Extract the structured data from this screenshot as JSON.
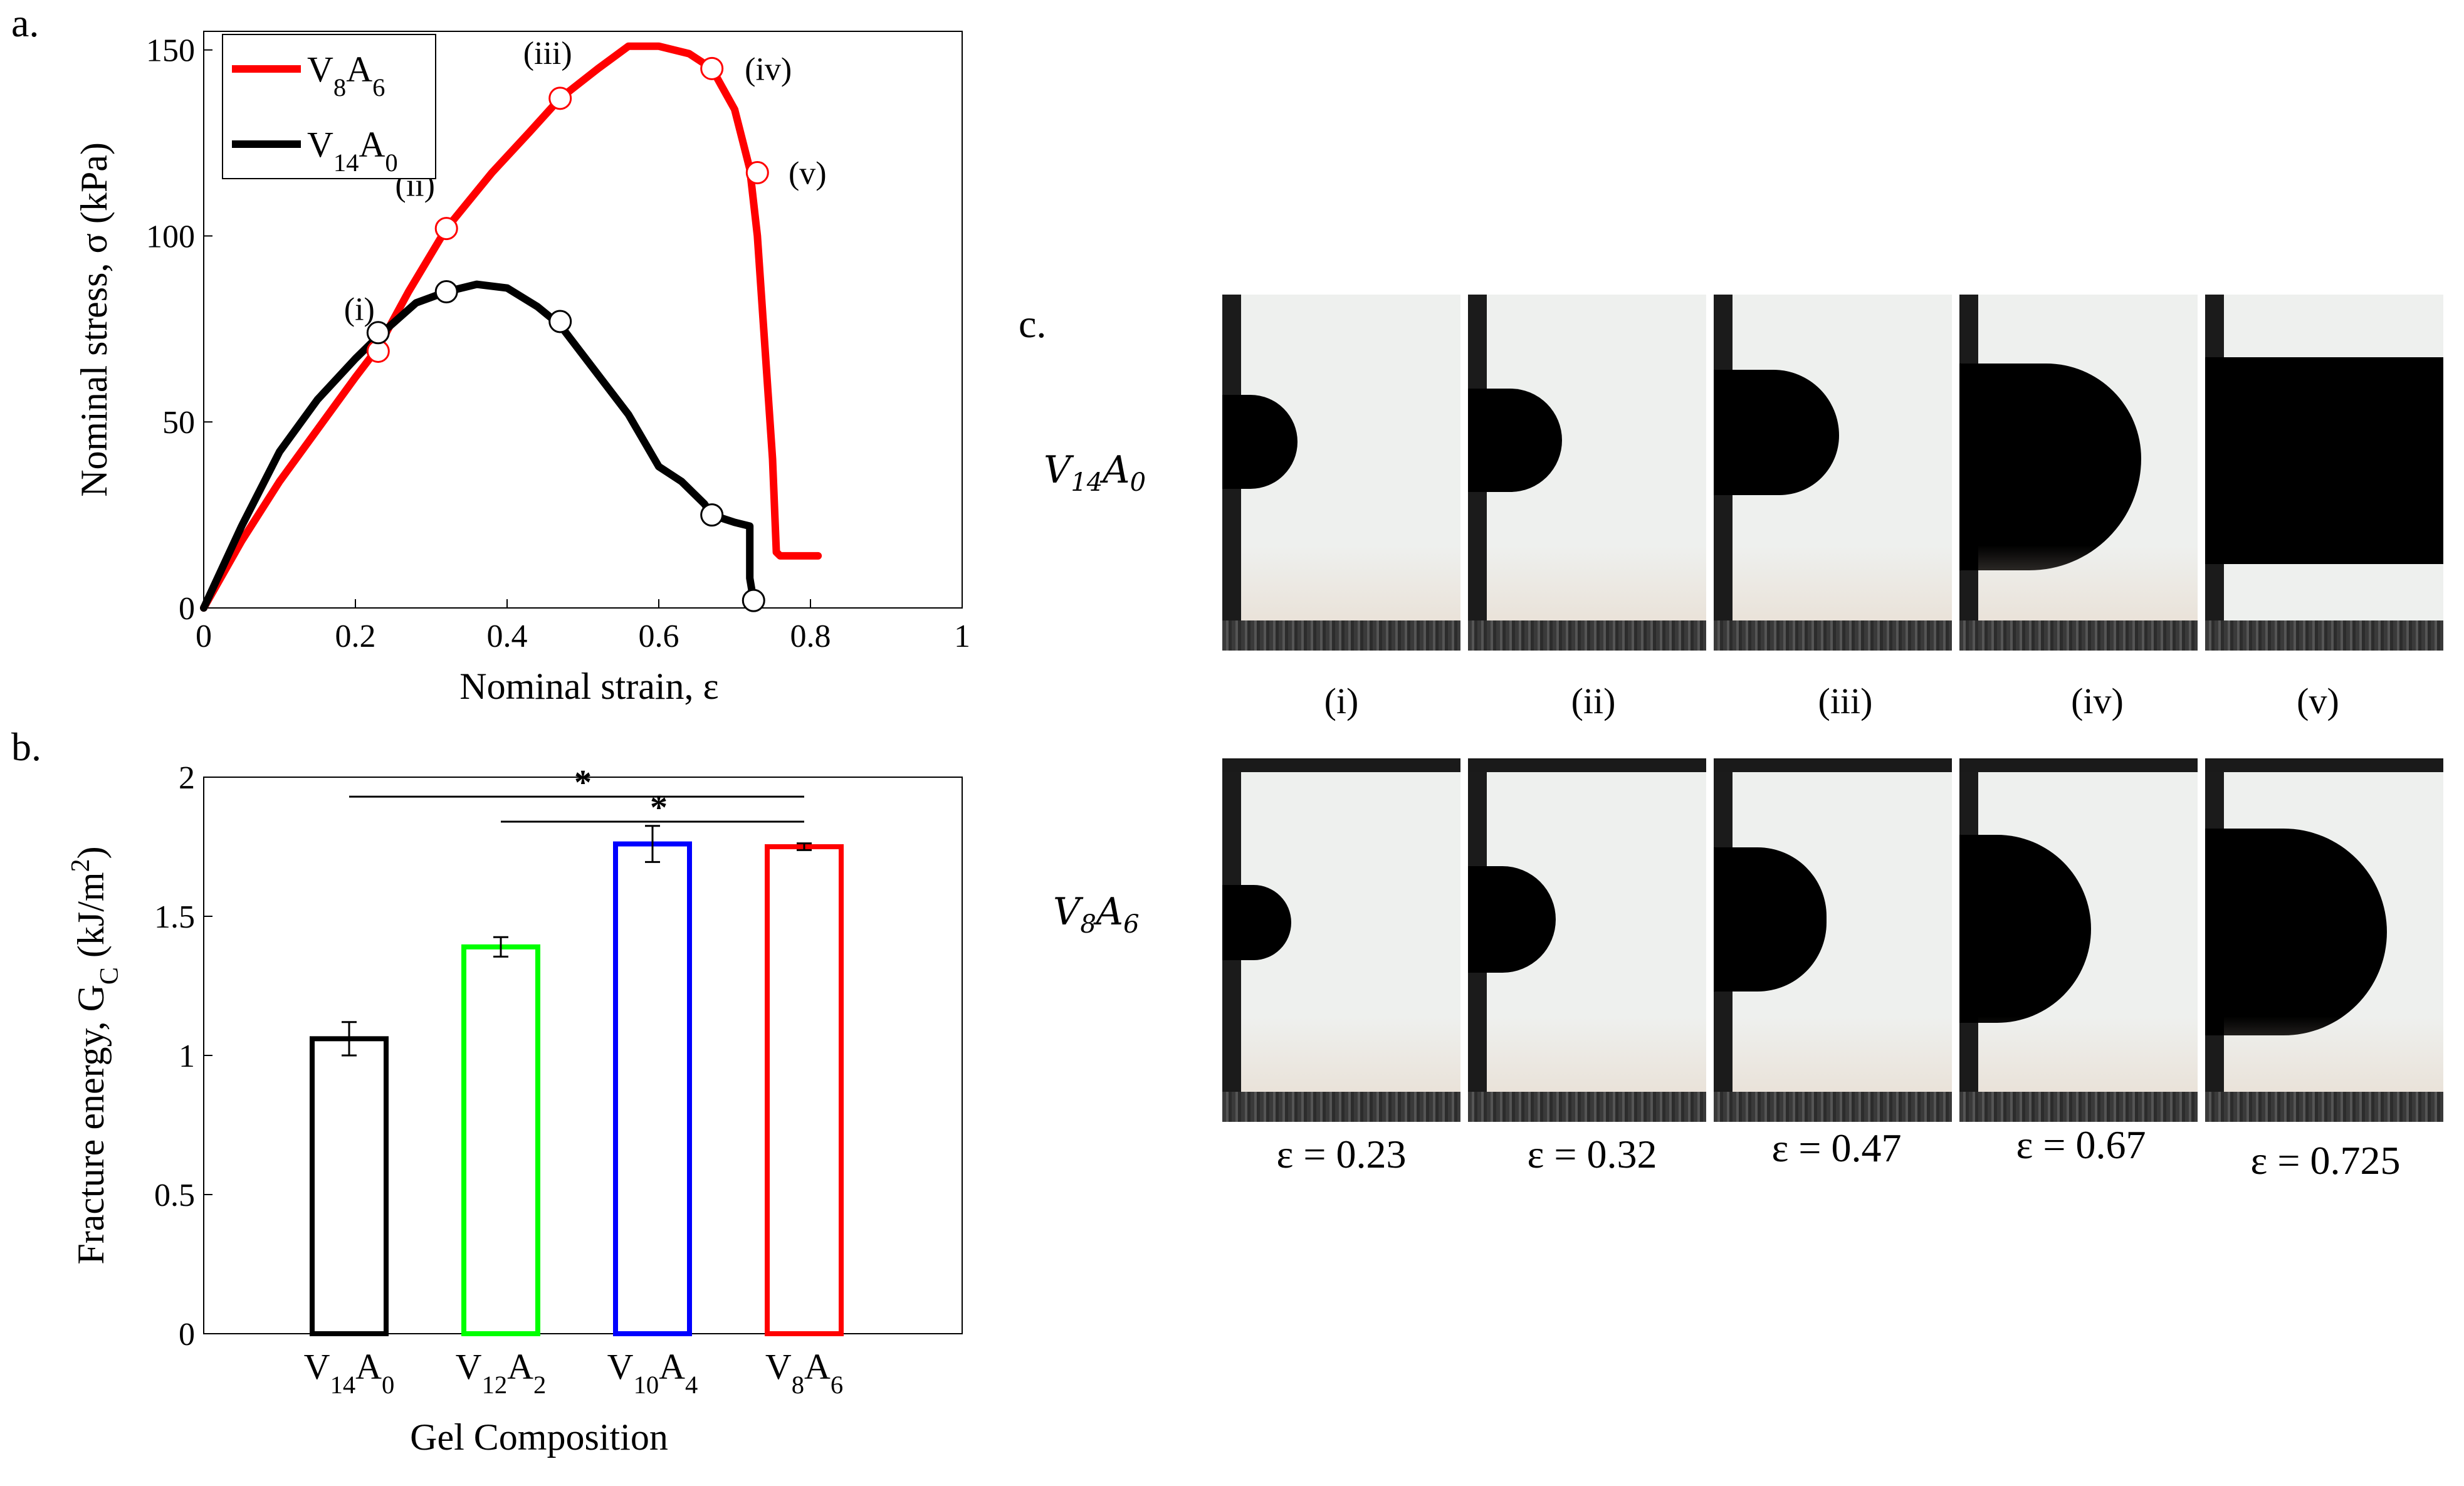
{
  "panels": {
    "a": "a.",
    "b": "b.",
    "c": "c."
  },
  "chart_data": [
    {
      "type": "line",
      "xlabel": "Nominal strain, ε",
      "ylabel": "Nominal stress, σ (kPa)",
      "xlim": [
        0,
        1
      ],
      "ylim": [
        0,
        155
      ],
      "xticks": [
        0,
        0.2,
        0.4,
        0.6,
        0.8,
        1
      ],
      "xtick_labels": [
        "0",
        "0.2",
        "0.4",
        "0.6",
        "0.8",
        "1"
      ],
      "yticks": [
        0,
        50,
        100,
        150
      ],
      "ytick_labels": [
        "0",
        "50",
        "100",
        "150"
      ],
      "legend_position": "top-left",
      "series": [
        {
          "name": "V8A6",
          "color": "#ff0000",
          "x": [
            0,
            0.05,
            0.1,
            0.15,
            0.2,
            0.23,
            0.27,
            0.32,
            0.38,
            0.43,
            0.47,
            0.52,
            0.56,
            0.6,
            0.64,
            0.67,
            0.7,
            0.72,
            0.73,
            0.74,
            0.75,
            0.755,
            0.76,
            0.8,
            0.81
          ],
          "y": [
            0,
            18,
            34,
            48,
            62,
            70,
            85,
            102,
            117,
            128,
            137,
            145,
            151,
            151,
            149,
            145,
            134,
            118,
            100,
            70,
            40,
            15,
            14,
            14,
            14
          ]
        },
        {
          "name": "V14A0",
          "color": "#000000",
          "x": [
            0,
            0.05,
            0.1,
            0.15,
            0.2,
            0.23,
            0.28,
            0.32,
            0.36,
            0.4,
            0.44,
            0.47,
            0.5,
            0.53,
            0.56,
            0.58,
            0.6,
            0.63,
            0.66,
            0.67,
            0.7,
            0.72,
            0.72,
            0.725
          ],
          "y": [
            0,
            22,
            42,
            56,
            67,
            73,
            82,
            85,
            87,
            86,
            81,
            76,
            68,
            60,
            52,
            45,
            38,
            34,
            28,
            25,
            23,
            22,
            8,
            2
          ]
        }
      ],
      "markers": [
        {
          "series": "V8A6",
          "x": 0.23,
          "y": 69,
          "label": "(i)"
        },
        {
          "series": "V8A6",
          "x": 0.32,
          "y": 102,
          "label": "(ii)"
        },
        {
          "series": "V8A6",
          "x": 0.47,
          "y": 137,
          "label": "(iii)"
        },
        {
          "series": "V8A6",
          "x": 0.67,
          "y": 145,
          "label": "(iv)"
        },
        {
          "series": "V8A6",
          "x": 0.73,
          "y": 117,
          "label": "(v)"
        },
        {
          "series": "V14A0",
          "x": 0.23,
          "y": 74,
          "label": ""
        },
        {
          "series": "V14A0",
          "x": 0.32,
          "y": 85,
          "label": ""
        },
        {
          "series": "V14A0",
          "x": 0.47,
          "y": 77,
          "label": ""
        },
        {
          "series": "V14A0",
          "x": 0.67,
          "y": 25,
          "label": ""
        },
        {
          "series": "V14A0",
          "x": 0.725,
          "y": 2,
          "label": ""
        }
      ]
    },
    {
      "type": "bar",
      "xlabel": "Gel Composition",
      "ylabel": "Fracture energy, GC (kJ/m2)",
      "ylim": [
        0,
        2
      ],
      "yticks": [
        0,
        0.5,
        1,
        1.5,
        2
      ],
      "ytick_labels": [
        "0",
        "0.5",
        "1",
        "1.5",
        "2"
      ],
      "categories": [
        "V14A0",
        "V12A2",
        "V10A4",
        "V8A6"
      ],
      "values": [
        1.06,
        1.39,
        1.76,
        1.75
      ],
      "errors": [
        0.06,
        0.035,
        0.065,
        0.012
      ],
      "colors": [
        "#000000",
        "#00ff00",
        "#0000ff",
        "#ff0000"
      ],
      "significance": [
        {
          "from": 0,
          "to": 3,
          "level": 1.93,
          "label": "*"
        },
        {
          "from": 1,
          "to": 3,
          "level": 1.84,
          "label": "*"
        }
      ]
    }
  ],
  "photos": {
    "rows": [
      {
        "label_base": "V",
        "label_sub1": "14",
        "label_mid": "A",
        "label_sub2": "0"
      },
      {
        "label_base": "V",
        "label_sub1": "8",
        "label_mid": "A",
        "label_sub2": "6"
      }
    ],
    "stage_labels": [
      "(i)",
      "(ii)",
      "(iii)",
      "(iv)",
      "(v)"
    ],
    "strain_captions": [
      "ε = 0.23",
      "ε = 0.32",
      "ε = 0.47",
      "ε = 0.67",
      "ε = 0.725"
    ]
  }
}
